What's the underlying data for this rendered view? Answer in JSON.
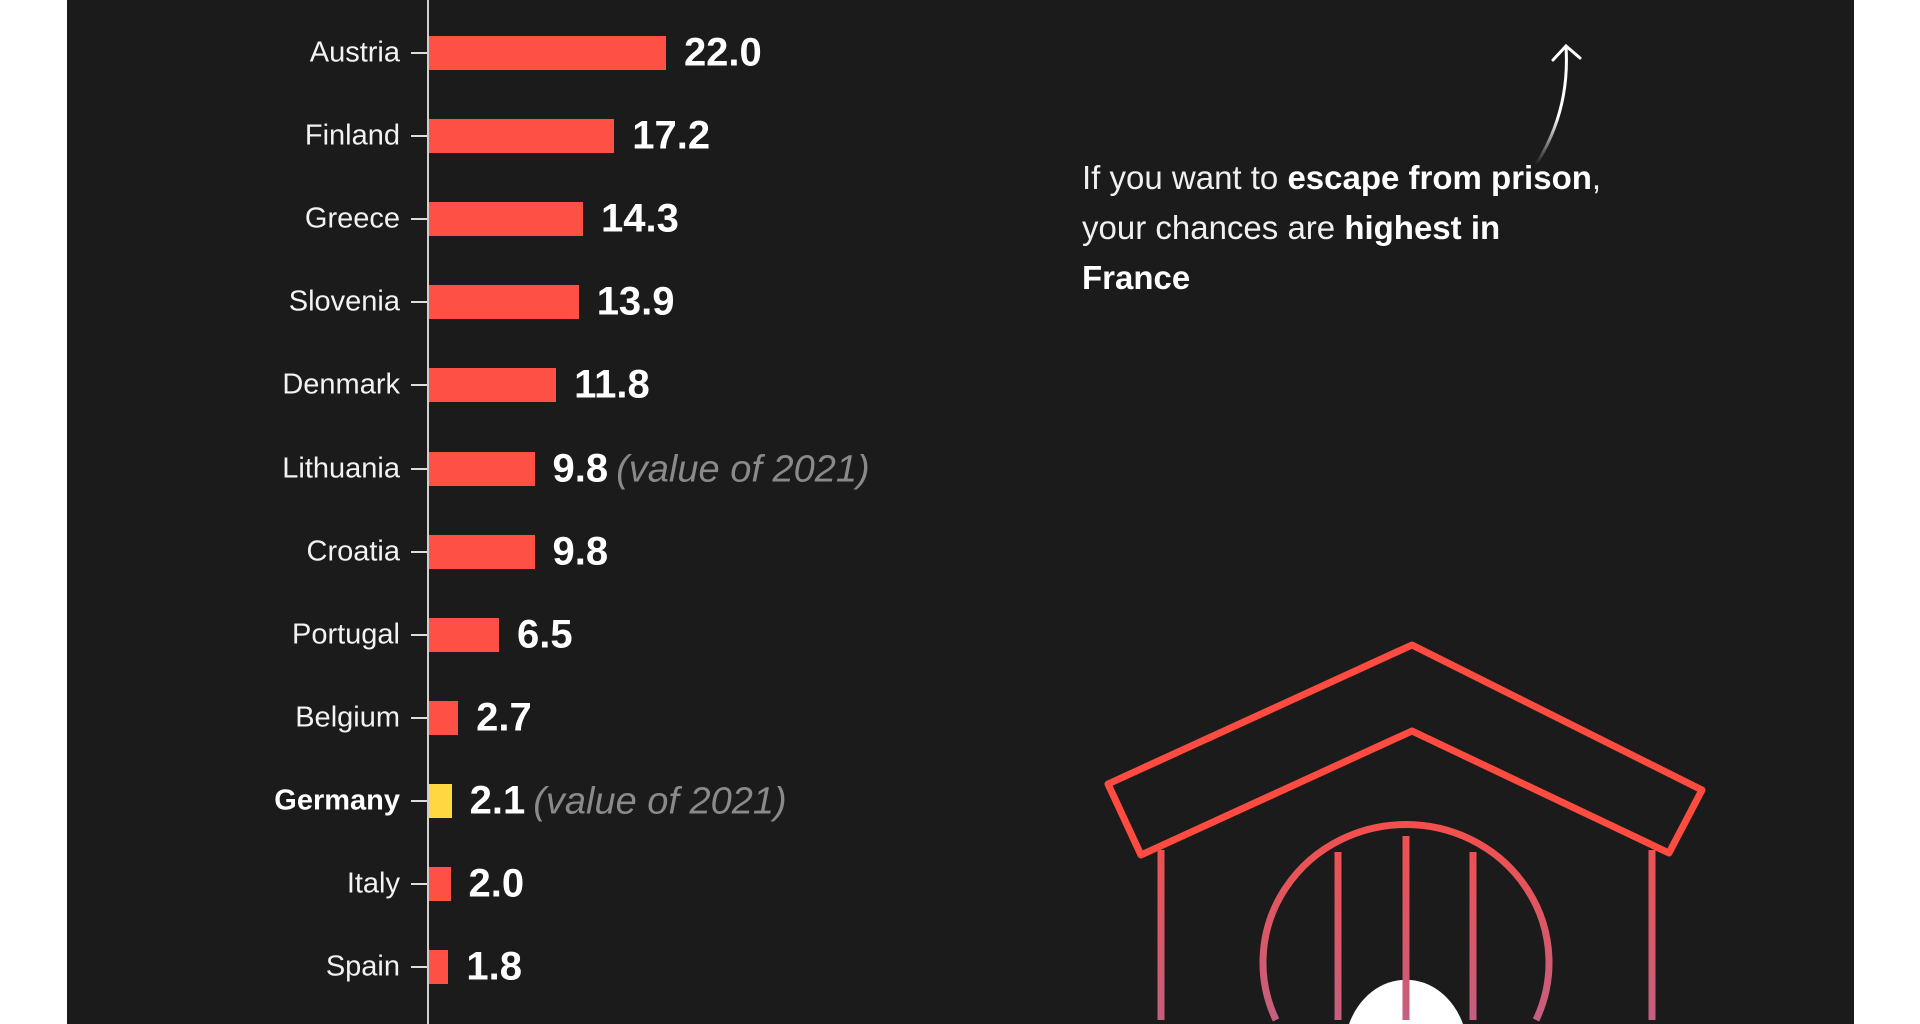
{
  "colors": {
    "background": "#1b1b1b",
    "bar": "#ff5045",
    "highlight": "#ffd740",
    "note": "#8a8a8a",
    "illustration_top": "#ff4b40",
    "illustration_bottom": "#c4607f"
  },
  "chart_data": {
    "type": "bar",
    "orientation": "horizontal",
    "categories": [
      "Austria",
      "Finland",
      "Greece",
      "Slovenia",
      "Denmark",
      "Lithuania",
      "Croatia",
      "Portugal",
      "Belgium",
      "Germany",
      "Italy",
      "Spain"
    ],
    "values": [
      22.0,
      17.2,
      14.3,
      13.9,
      11.8,
      9.8,
      9.8,
      6.5,
      2.7,
      2.1,
      2.0,
      1.8
    ],
    "value_labels": [
      "22.0",
      "17.2",
      "14.3",
      "13.9",
      "11.8",
      "9.8",
      "9.8",
      "6.5",
      "2.7",
      "2.1",
      "2.0",
      "1.8"
    ],
    "notes": [
      "",
      "",
      "",
      "",
      "",
      "(value of 2021)",
      "",
      "",
      "",
      "(value of 2021)",
      "",
      ""
    ],
    "highlighted": "Germany",
    "title": "",
    "xlabel": "",
    "ylabel": "",
    "grid": false
  },
  "annotation": {
    "p1": "If you want to ",
    "b1": "escape from prison",
    "p2": ", your chances are ",
    "b2": "highest in France"
  },
  "icons": {
    "arrow": "curved-arrow-up-icon",
    "illustration": "prison-house-icon"
  }
}
